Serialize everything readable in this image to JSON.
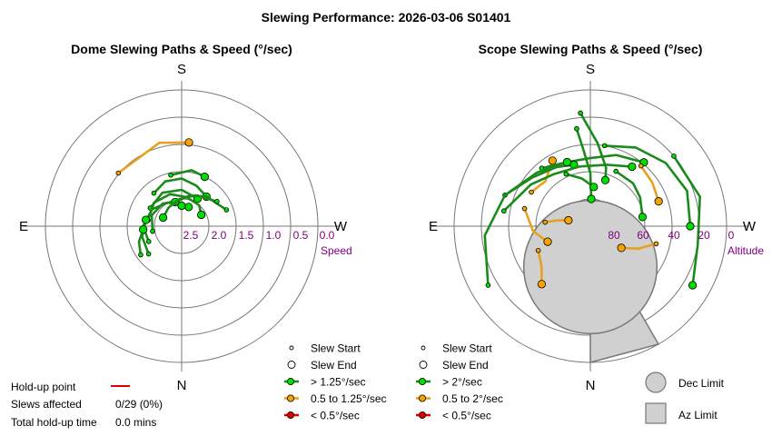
{
  "title": "Slewing Performance: 2026-03-06 S01401",
  "colors": {
    "fast": "#00dd00",
    "fast_line": "#1a8a1a",
    "medium": "#f5a300",
    "medium_line": "#e8a020",
    "slow": "#dd0000",
    "ring": "#777777",
    "axis_label": "#800080",
    "limit_fill": "#d0d0d0",
    "limit_edge": "#777777",
    "holdup": "#dd0000"
  },
  "summary": {
    "holdup_label": "Hold-up point",
    "affected_label": "Slews affected",
    "affected_value": "0/29 (0%)",
    "total_label": "Total hold-up time",
    "total_value": "0.0 mins"
  },
  "chart_data": [
    {
      "type": "scatter",
      "subtype": "polar",
      "title": "Dome Slewing Paths & Speed (°/sec)",
      "direction_labels": {
        "top": "S",
        "left": "E",
        "right": "W",
        "bottom": "N"
      },
      "radial_axis_label": "Speed",
      "radial_ticks": [
        "2.5",
        "2.0",
        "1.5",
        "1.0",
        "0.5",
        "0.0"
      ],
      "radial_ticks_values": [
        2.5,
        2.0,
        1.5,
        1.0,
        0.5,
        0.0
      ],
      "radial_range": [
        3.0,
        0.0
      ],
      "legend": [
        {
          "marker": "start",
          "label": "Slew Start"
        },
        {
          "marker": "end",
          "label": "Slew End"
        },
        {
          "marker": "fast",
          "label": "> 1.25°/sec"
        },
        {
          "marker": "medium",
          "label": "0.5 to 1.25°/sec"
        },
        {
          "marker": "slow",
          "label": "< 0.5°/sec"
        }
      ],
      "slews": [
        {
          "az": [
            -50,
            -15,
            5
          ],
          "r": [
            1.18,
            1.1,
            1.15
          ],
          "speed": "medium"
        },
        {
          "az": [
            -12,
            10,
            25
          ],
          "r": [
            1.85,
            1.75,
            1.8
          ],
          "speed": "fast"
        },
        {
          "az": [
            -40,
            -20,
            0,
            20,
            40
          ],
          "r": [
            2.05,
            1.95,
            1.95,
            2.05,
            2.15
          ],
          "speed": "fast"
        },
        {
          "az": [
            -60,
            -30,
            0,
            30
          ],
          "r": [
            2.2,
            2.15,
            2.2,
            2.3
          ],
          "speed": "fast"
        },
        {
          "az": [
            -80,
            -50,
            -20,
            10,
            40,
            60
          ],
          "r": [
            2.25,
            2.2,
            2.25,
            2.35,
            2.4,
            2.5
          ],
          "speed": "fast"
        },
        {
          "az": [
            -100,
            -70,
            -40,
            -10,
            20
          ],
          "r": [
            2.35,
            2.3,
            2.35,
            2.45,
            2.55
          ],
          "speed": "fast"
        },
        {
          "az": [
            70,
            40,
            15,
            -15
          ],
          "r": [
            1.95,
            2.15,
            2.3,
            2.45
          ],
          "speed": "fast"
        },
        {
          "az": [
            -115,
            -90,
            -60,
            -30,
            0
          ],
          "r": [
            2.2,
            2.15,
            2.25,
            2.4,
            2.55
          ],
          "speed": "fast"
        },
        {
          "az": [
            55,
            25,
            -5,
            -35,
            -65
          ],
          "r": [
            2.05,
            2.25,
            2.4,
            2.5,
            2.55
          ],
          "speed": "fast"
        },
        {
          "az": [
            -130,
            -105,
            -80
          ],
          "r": [
            2.05,
            2.1,
            2.2
          ],
          "speed": "fast"
        },
        {
          "az": [
            -125,
            -110,
            -95
          ],
          "r": [
            1.9,
            2.0,
            2.15
          ],
          "speed": "fast"
        }
      ]
    },
    {
      "type": "scatter",
      "subtype": "polar",
      "title": "Scope Slewing Paths & Speed (°/sec)",
      "direction_labels": {
        "top": "S",
        "left": "E",
        "right": "W",
        "bottom": "N"
      },
      "radial_axis_label": "Altitude",
      "radial_ticks": [
        "80",
        "60",
        "40",
        "20",
        "0"
      ],
      "radial_ticks_values": [
        80,
        60,
        40,
        20,
        0
      ],
      "radial_range": [
        90,
        0
      ],
      "legend": [
        {
          "marker": "start",
          "label": "Slew Start"
        },
        {
          "marker": "end",
          "label": "Slew End"
        },
        {
          "marker": "fast",
          "label": "> 2°/sec"
        },
        {
          "marker": "medium",
          "label": "0.5 to 2°/sec"
        },
        {
          "marker": "slow",
          "label": "< 0.5°/sec"
        }
      ],
      "limits_legend": [
        {
          "marker": "dec",
          "label": "Dec Limit"
        },
        {
          "marker": "az",
          "label": "Az Limit"
        }
      ],
      "slews": [
        {
          "az": [
            -8,
            -5,
            0,
            2
          ],
          "alt": [
            25,
            40,
            55,
            72
          ],
          "speed": "fast"
        },
        {
          "az": [
            -5,
            5,
            15,
            18
          ],
          "alt": [
            15,
            35,
            50,
            58
          ],
          "speed": "fast"
        },
        {
          "az": [
            -60,
            -45,
            -30
          ],
          "alt": [
            45,
            48,
            40
          ],
          "speed": "medium"
        },
        {
          "az": [
            -40,
            -20,
            0,
            20,
            40
          ],
          "alt": [
            40,
            45,
            45,
            40,
            35
          ],
          "speed": "fast"
        },
        {
          "az": [
            -70,
            -50,
            -30,
            -15
          ],
          "alt": [
            30,
            40,
            45,
            48
          ],
          "speed": "fast"
        },
        {
          "az": [
            -120,
            -95,
            -70,
            -45,
            -20
          ],
          "alt": [
            12,
            20,
            30,
            40,
            45
          ],
          "speed": "fast"
        },
        {
          "az": [
            -80,
            -55,
            -35,
            -10,
            15,
            35
          ],
          "alt": [
            32,
            42,
            48,
            50,
            48,
            42
          ],
          "speed": "fast"
        },
        {
          "az": [
            40,
            55,
            70
          ],
          "alt": [
            38,
            40,
            42
          ],
          "speed": "medium"
        },
        {
          "az": [
            25,
            45,
            60,
            80
          ],
          "alt": [
            50,
            50,
            52,
            55
          ],
          "speed": "fast"
        },
        {
          "az": [
            10,
            30,
            50,
            70,
            90
          ],
          "alt": [
            36,
            30,
            25,
            22,
            24
          ],
          "speed": "fast"
        },
        {
          "az": [
            -75,
            -95,
            -110
          ],
          "alt": [
            45,
            52,
            60
          ],
          "speed": "medium"
        },
        {
          "az": [
            -115,
            -130,
            -140
          ],
          "alt": [
            52,
            48,
            40
          ],
          "speed": "medium"
        },
        {
          "az": [
            50,
            75,
            100,
            120
          ],
          "alt": [
            18,
            15,
            18,
            12
          ],
          "speed": "fast"
        },
        {
          "az": [
            -25,
            -10,
            5
          ],
          "alt": [
            52,
            58,
            64
          ],
          "speed": "fast"
        },
        {
          "az": [
            -85,
            -80,
            -75
          ],
          "alt": [
            60,
            68,
            75
          ],
          "speed": "medium"
        },
        {
          "az": [
            105,
            115,
            125
          ],
          "alt": [
            45,
            55,
            65
          ],
          "speed": "medium"
        }
      ],
      "limits": {
        "dec_limit_alt_deg": 70,
        "dec_limit_center_alt": 63,
        "az_limit": {
          "az_from": 150,
          "az_to": 180,
          "alt_from": 62,
          "alt_to": 0
        }
      }
    }
  ]
}
